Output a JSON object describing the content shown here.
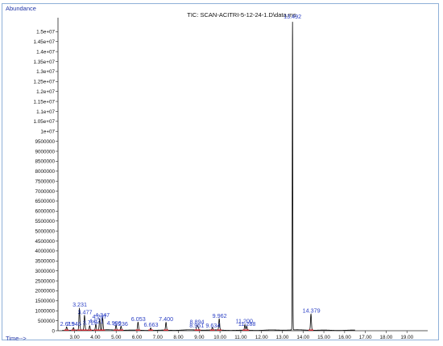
{
  "window": {
    "y_corner_label": "Abundance",
    "x_corner_label": "Time-->"
  },
  "colors": {
    "trace": "#000000",
    "peak_label": "#2a3fc4",
    "integration_mark": "#d0202a",
    "axis": "#222222",
    "frame_border": "#8fb0d8"
  },
  "chart_data": {
    "type": "line",
    "title": "TIC: SCAN-ACITRI-5-12-24-1.D\\data.ms",
    "xlabel": "Time-->",
    "ylabel": "Abundance",
    "xlim": [
      2.2,
      20.0
    ],
    "ylim": [
      0,
      15700000
    ],
    "x_ticks": [
      3.0,
      4.0,
      5.0,
      6.0,
      7.0,
      8.0,
      9.0,
      10.0,
      11.0,
      12.0,
      13.0,
      14.0,
      15.0,
      16.0,
      17.0,
      18.0,
      19.0
    ],
    "x_tick_labels": [
      "3.00",
      "4.00",
      "5.00",
      "6.00",
      "7.00",
      "8.00",
      "9.00",
      "10.00",
      "11.00",
      "12.00",
      "13.00",
      "14.00",
      "15.00",
      "16.00",
      "17.00",
      "18.00",
      "19.00"
    ],
    "y_ticks": [
      0,
      500000,
      1000000,
      1500000,
      2000000,
      2500000,
      3000000,
      3500000,
      4000000,
      4500000,
      5000000,
      5500000,
      6000000,
      6500000,
      7000000,
      7500000,
      8000000,
      8500000,
      9000000,
      9500000,
      10000000,
      10500000,
      11000000,
      11500000,
      12000000,
      12500000,
      13000000,
      13500000,
      14000000,
      14500000,
      15000000
    ],
    "y_tick_labels": [
      "0",
      "500000",
      "1000000",
      "1500000",
      "2000000",
      "2500000",
      "3000000",
      "3500000",
      "4000000",
      "4500000",
      "5000000",
      "5500000",
      "6000000",
      "6500000",
      "7000000",
      "7500000",
      "8000000",
      "8500000",
      "9000000",
      "9500000",
      "1e+07",
      "1.05e+07",
      "1.1e+07",
      "1.15e+07",
      "1.2e+07",
      "1.25e+07",
      "1.3e+07",
      "1.35e+07",
      "1.4e+07",
      "1.45e+07",
      "1.5e+07"
    ],
    "grid": false,
    "legend": "none",
    "trace_end": 16.5,
    "baseline": 30000,
    "peaks": [
      {
        "rt": 2.615,
        "label": "2.615",
        "height": 180000,
        "label_y": 250000,
        "label_x": 2.65
      },
      {
        "rt": 2.946,
        "label": "2.946",
        "height": 130000,
        "label_y": 250000,
        "label_x": 2.97
      },
      {
        "rt": 3.231,
        "label": "3.231",
        "height": 1080000,
        "label_y": 1210000,
        "label_x": 3.25
      },
      {
        "rt": 3.477,
        "label": "3.477",
        "height": 730000,
        "label_y": 820000,
        "label_x": 3.5
      },
      {
        "rt": 3.725,
        "label": "3.725",
        "height": 220000,
        "label_y": 310000,
        "label_x": 3.74
      },
      {
        "rt": 4.021,
        "label": "4.021",
        "height": 300000,
        "label_y": 390000,
        "label_x": 4.04
      },
      {
        "rt": 4.207,
        "label": "4.207",
        "height": 560000,
        "label_y": 610000,
        "label_x": 4.2
      },
      {
        "rt": 4.347,
        "label": "4.347",
        "height": 640000,
        "label_y": 680000,
        "label_x": 4.34
      },
      {
        "rt": 4.996,
        "label": "4.996",
        "height": 250000,
        "label_y": 290000,
        "label_x": 4.9
      },
      {
        "rt": 5.236,
        "label": "5.236",
        "height": 200000,
        "label_y": 240000,
        "label_x": 5.22
      },
      {
        "rt": 6.053,
        "label": "6.053",
        "height": 400000,
        "label_y": 490000,
        "label_x": 6.07
      },
      {
        "rt": 6.663,
        "label": "6.663",
        "height": 130000,
        "label_y": 200000,
        "label_x": 6.68
      },
      {
        "rt": 7.4,
        "label": "7.400",
        "height": 390000,
        "label_y": 490000,
        "label_x": 7.4
      },
      {
        "rt": 8.894,
        "label": "8.894",
        "height": 240000,
        "label_y": 340000,
        "label_x": 8.89
      },
      {
        "rt": 8.951,
        "label": "8.951",
        "height": 160000,
        "label_y": 170000,
        "label_x": 8.88
      },
      {
        "rt": 9.634,
        "label": "9.634",
        "height": 130000,
        "label_y": 170000,
        "label_x": 9.66
      },
      {
        "rt": 9.962,
        "label": "9.962",
        "height": 560000,
        "label_y": 650000,
        "label_x": 9.98
      },
      {
        "rt": 11.2,
        "label": "11.200",
        "height": 280000,
        "label_y": 380000,
        "label_x": 11.17
      },
      {
        "rt": 11.288,
        "label": "11.288",
        "height": 200000,
        "label_y": 240000,
        "label_x": 11.3
      },
      {
        "rt": 13.492,
        "label": "13.492",
        "height": 15450000,
        "label_y": 15650000,
        "label_x": 13.49
      },
      {
        "rt": 14.379,
        "label": "14.379",
        "height": 810000,
        "label_y": 900000,
        "label_x": 14.4
      }
    ]
  }
}
